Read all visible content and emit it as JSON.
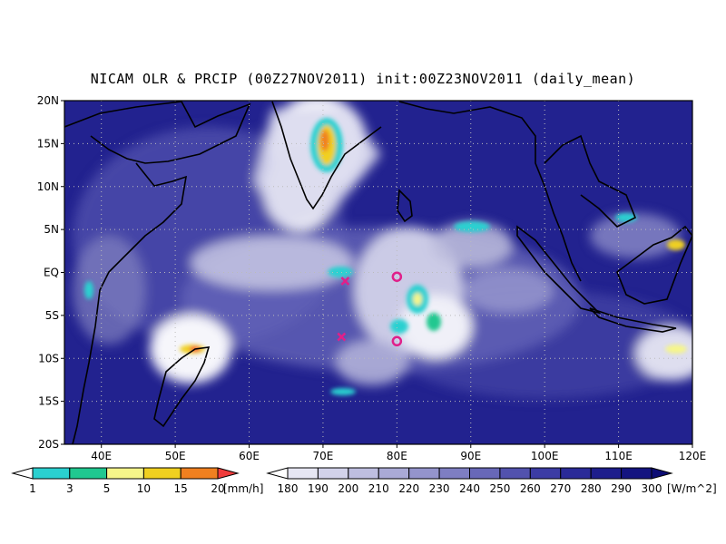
{
  "title": "NICAM OLR & PRCIP (00Z27NOV2011) init:00Z23NOV2011 (daily_mean)",
  "map": {
    "lon_range": [
      35,
      120
    ],
    "lat_range": [
      -20,
      20
    ],
    "lat_ticks": [
      "20N",
      "15N",
      "10N",
      "5N",
      "EQ",
      "5S",
      "10S",
      "15S",
      "20S"
    ],
    "lon_ticks": [
      "40E",
      "50E",
      "60E",
      "70E",
      "80E",
      "90E",
      "100E",
      "110E",
      "120E"
    ],
    "gridlines": "dotted",
    "markers": [
      {
        "type": "x",
        "lon": 73,
        "lat": -1,
        "color": "#e0208a"
      },
      {
        "type": "x",
        "lon": 72.5,
        "lat": -7.5,
        "color": "#e0208a"
      },
      {
        "type": "o",
        "lon": 80,
        "lat": -0.5,
        "color": "#e0208a"
      },
      {
        "type": "o",
        "lon": 80,
        "lat": -8,
        "color": "#e0208a"
      }
    ]
  },
  "legend_precip": {
    "labels": [
      "1",
      "3",
      "5",
      "10",
      "15",
      "20"
    ],
    "unit": "[mm/h]",
    "colors": [
      "#ffffff",
      "#2ad0d0",
      "#20c890",
      "#f5f58a",
      "#f0d020",
      "#f08020",
      "#f03c3c"
    ]
  },
  "legend_olr": {
    "labels": [
      "180",
      "190",
      "200",
      "210",
      "220",
      "230",
      "240",
      "250",
      "260",
      "270",
      "280",
      "290",
      "300"
    ],
    "unit": "[W/m^2]",
    "colors": [
      "#ffffff",
      "#e6e6f3",
      "#d2d2ea",
      "#bebee0",
      "#aaaad6",
      "#9494cc",
      "#7e7ec2",
      "#6868b8",
      "#5252ae",
      "#3c3ca4",
      "#2a2a98",
      "#1e1e8c",
      "#141480",
      "#0c0c74"
    ]
  }
}
